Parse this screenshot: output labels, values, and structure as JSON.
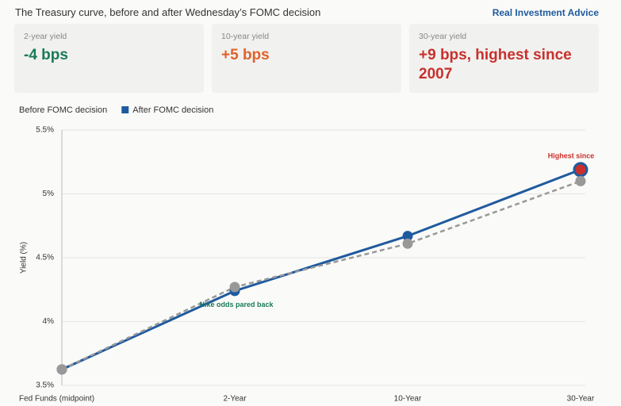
{
  "header": {
    "title": "The Treasury curve, before and after Wednesday’s FOMC decision",
    "brand": "Real Investment Advice"
  },
  "cards": [
    {
      "label": "2-year yield",
      "value": "-4 bps",
      "color": "#1a7a5a"
    },
    {
      "label": "10-year yield",
      "value": "+5 bps",
      "color": "#e0622a"
    },
    {
      "label": "30-year yield",
      "value": "+9 bps, highest since 2007",
      "color": "#c9302c"
    }
  ],
  "chart_data": {
    "type": "line",
    "y_label": "Yield (%)",
    "categories": [
      "Fed Funds (midpoint)",
      "2-Year",
      "10-Year",
      "30-Year"
    ],
    "series": [
      {
        "name": "Before FOMC decision",
        "color": "#999999",
        "dashed": true,
        "values": [
          3.625,
          4.27,
          4.61,
          5.1
        ]
      },
      {
        "name": "After FOMC decision",
        "color": "#1f5a9e",
        "dashed": false,
        "values": [
          3.625,
          4.24,
          4.67,
          5.19
        ]
      }
    ],
    "ylim": [
      3.5,
      5.5
    ],
    "yticks": [
      {
        "value": 3.5,
        "label": "3.5%"
      },
      {
        "value": 4,
        "label": "4%"
      },
      {
        "value": 4.5,
        "label": "4.5%"
      },
      {
        "value": 5,
        "label": "5%"
      },
      {
        "value": 5.5,
        "label": "5.5%"
      }
    ],
    "grid": true,
    "annotations": [
      {
        "text": "Highest since",
        "color": "#c9302c"
      },
      {
        "text": "Hike odds pared back",
        "color": "#1a7a5a"
      }
    ]
  }
}
